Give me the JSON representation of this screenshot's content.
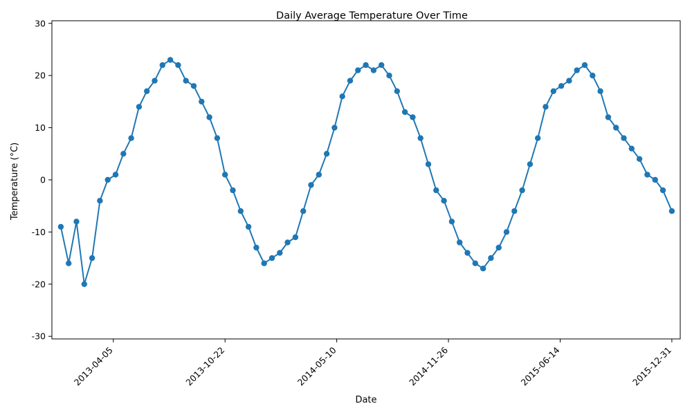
{
  "chart_data": {
    "type": "line",
    "title": "Daily Average Temperature Over Time",
    "xlabel": "Date",
    "ylabel": "Temperature (°C)",
    "xlim": [
      "2012-12-16",
      "2016-01-15"
    ],
    "ylim": [
      -30.5,
      30.5
    ],
    "x_ticks": [
      "2013-04-05",
      "2013-10-22",
      "2014-05-10",
      "2014-11-26",
      "2015-06-14",
      "2015-12-31"
    ],
    "y_ticks": [
      -30,
      -20,
      -10,
      0,
      10,
      20,
      30
    ],
    "grid": false,
    "legend": "none",
    "series": [
      {
        "color": "#1f77b4",
        "marker": "circle",
        "x": [
          "2013-01-01",
          "2013-01-15",
          "2013-01-29",
          "2013-02-12",
          "2013-02-26",
          "2013-03-12",
          "2013-03-26",
          "2013-04-09",
          "2013-04-23",
          "2013-05-07",
          "2013-05-21",
          "2013-06-04",
          "2013-06-18",
          "2013-07-02",
          "2013-07-16",
          "2013-07-30",
          "2013-08-13",
          "2013-08-27",
          "2013-09-10",
          "2013-09-24",
          "2013-10-08",
          "2013-10-22",
          "2013-11-05",
          "2013-11-19",
          "2013-12-03",
          "2013-12-17",
          "2013-12-31",
          "2014-01-14",
          "2014-01-28",
          "2014-02-11",
          "2014-02-25",
          "2014-03-11",
          "2014-03-25",
          "2014-04-08",
          "2014-04-22",
          "2014-05-06",
          "2014-05-20",
          "2014-06-03",
          "2014-06-17",
          "2014-07-01",
          "2014-07-15",
          "2014-07-29",
          "2014-08-12",
          "2014-08-26",
          "2014-09-09",
          "2014-09-23",
          "2014-10-07",
          "2014-10-21",
          "2014-11-04",
          "2014-11-18",
          "2014-12-02",
          "2014-12-16",
          "2014-12-30",
          "2015-01-13",
          "2015-01-27",
          "2015-02-10",
          "2015-02-24",
          "2015-03-10",
          "2015-03-24",
          "2015-04-07",
          "2015-04-21",
          "2015-05-05",
          "2015-05-19",
          "2015-06-02",
          "2015-06-16",
          "2015-06-30",
          "2015-07-14",
          "2015-07-28",
          "2015-08-11",
          "2015-08-25",
          "2015-09-08",
          "2015-09-22",
          "2015-10-06",
          "2015-10-20",
          "2015-11-03",
          "2015-11-17",
          "2015-12-01",
          "2015-12-15",
          "2015-12-31"
        ],
        "y": [
          -9,
          -16,
          -8,
          -20,
          -15,
          -4,
          0,
          1,
          5,
          8,
          14,
          17,
          19,
          22,
          23,
          22,
          19,
          18,
          15,
          12,
          8,
          1,
          -2,
          -6,
          -9,
          -13,
          -16,
          -15,
          -14,
          -12,
          -11,
          -6,
          -1,
          1,
          5,
          10,
          16,
          19,
          21,
          22,
          21,
          22,
          20,
          17,
          13,
          12,
          8,
          3,
          -2,
          -4,
          -8,
          -12,
          -14,
          -16,
          -17,
          -15,
          -13,
          -10,
          -6,
          -2,
          3,
          8,
          14,
          17,
          18,
          19,
          21,
          22,
          20,
          17,
          12,
          10,
          8,
          6,
          4,
          1,
          0,
          -2,
          -6
        ]
      }
    ]
  }
}
